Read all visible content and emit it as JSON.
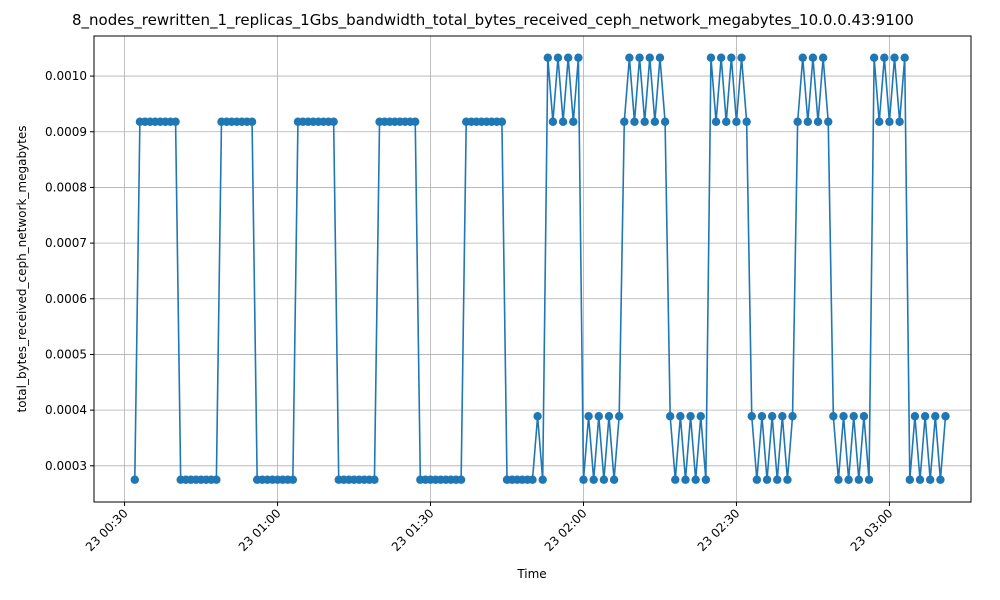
{
  "chart_data": {
    "type": "line",
    "title": "8_nodes_rewritten_1_replicas_1Gbs_bandwidth_total_bytes_received_ceph_network_megabytes_10.0.0.43:9100",
    "x_label": "Time",
    "y_label": "total_bytes_received_ceph_network_megabytes",
    "color": "#1f77b4",
    "grid": true,
    "marker": "circle",
    "x": [
      "23 00:32",
      "23 00:33",
      "23 00:34",
      "23 00:35",
      "23 00:36",
      "23 00:37",
      "23 00:38",
      "23 00:39",
      "23 00:40",
      "23 00:41",
      "23 00:42",
      "23 00:43",
      "23 00:44",
      "23 00:45",
      "23 00:46",
      "23 00:47",
      "23 00:48",
      "23 00:49",
      "23 00:50",
      "23 00:51",
      "23 00:52",
      "23 00:53",
      "23 00:54",
      "23 00:55",
      "23 00:56",
      "23 00:57",
      "23 00:58",
      "23 00:59",
      "23 01:00",
      "23 01:01",
      "23 01:02",
      "23 01:03",
      "23 01:04",
      "23 01:05",
      "23 01:06",
      "23 01:07",
      "23 01:08",
      "23 01:09",
      "23 01:10",
      "23 01:11",
      "23 01:12",
      "23 01:13",
      "23 01:14",
      "23 01:15",
      "23 01:16",
      "23 01:17",
      "23 01:18",
      "23 01:19",
      "23 01:20",
      "23 01:21",
      "23 01:22",
      "23 01:23",
      "23 01:24",
      "23 01:25",
      "23 01:26",
      "23 01:27",
      "23 01:28",
      "23 01:29",
      "23 01:30",
      "23 01:31",
      "23 01:32",
      "23 01:33",
      "23 01:34",
      "23 01:35",
      "23 01:36",
      "23 01:37",
      "23 01:38",
      "23 01:39",
      "23 01:40",
      "23 01:41",
      "23 01:42",
      "23 01:43",
      "23 01:44",
      "23 01:45",
      "23 01:46",
      "23 01:47",
      "23 01:48",
      "23 01:49",
      "23 01:50",
      "23 01:51",
      "23 01:52",
      "23 01:53",
      "23 01:54",
      "23 01:55",
      "23 01:56",
      "23 01:57",
      "23 01:58",
      "23 01:59",
      "23 02:00",
      "23 02:01",
      "23 02:02",
      "23 02:03",
      "23 02:04",
      "23 02:05",
      "23 02:06",
      "23 02:07",
      "23 02:08",
      "23 02:09",
      "23 02:10",
      "23 02:11",
      "23 02:12",
      "23 02:13",
      "23 02:14",
      "23 02:15",
      "23 02:16",
      "23 02:17",
      "23 02:18",
      "23 02:19",
      "23 02:20",
      "23 02:21",
      "23 02:22",
      "23 02:23",
      "23 02:24",
      "23 02:25",
      "23 02:26",
      "23 02:27",
      "23 02:28",
      "23 02:29",
      "23 02:30",
      "23 02:31",
      "23 02:32",
      "23 02:33",
      "23 02:34",
      "23 02:35",
      "23 02:36",
      "23 02:37",
      "23 02:38",
      "23 02:39",
      "23 02:40",
      "23 02:41",
      "23 02:42",
      "23 02:43",
      "23 02:44",
      "23 02:45",
      "23 02:46",
      "23 02:47",
      "23 02:48",
      "23 02:49",
      "23 02:50",
      "23 02:51",
      "23 02:52",
      "23 02:53",
      "23 02:54",
      "23 02:55",
      "23 02:56",
      "23 02:57",
      "23 02:58",
      "23 02:59",
      "23 03:00",
      "23 03:01",
      "23 03:02",
      "23 03:03",
      "23 03:04",
      "23 03:05",
      "23 03:06",
      "23 03:07",
      "23 03:08",
      "23 03:09",
      "23 03:10",
      "23 03:11"
    ],
    "values": [
      0.000275,
      0.000918,
      0.000918,
      0.000918,
      0.000918,
      0.000918,
      0.000918,
      0.000918,
      0.000918,
      0.000275,
      0.000275,
      0.000275,
      0.000275,
      0.000275,
      0.000275,
      0.000275,
      0.000275,
      0.000918,
      0.000918,
      0.000918,
      0.000918,
      0.000918,
      0.000918,
      0.000918,
      0.000275,
      0.000275,
      0.000275,
      0.000275,
      0.000275,
      0.000275,
      0.000275,
      0.000275,
      0.000918,
      0.000918,
      0.000918,
      0.000918,
      0.000918,
      0.000918,
      0.000918,
      0.000918,
      0.000275,
      0.000275,
      0.000275,
      0.000275,
      0.000275,
      0.000275,
      0.000275,
      0.000275,
      0.000918,
      0.000918,
      0.000918,
      0.000918,
      0.000918,
      0.000918,
      0.000918,
      0.000918,
      0.000275,
      0.000275,
      0.000275,
      0.000275,
      0.000275,
      0.000275,
      0.000275,
      0.000275,
      0.000275,
      0.000918,
      0.000918,
      0.000918,
      0.000918,
      0.000918,
      0.000918,
      0.000918,
      0.000918,
      0.000275,
      0.000275,
      0.000275,
      0.000275,
      0.000275,
      0.000275,
      0.000389,
      0.000275,
      0.001033,
      0.000918,
      0.001033,
      0.000918,
      0.001033,
      0.000918,
      0.001033,
      0.000275,
      0.000389,
      0.000275,
      0.000389,
      0.000275,
      0.000389,
      0.000275,
      0.000389,
      0.000918,
      0.001033,
      0.000918,
      0.001033,
      0.000918,
      0.001033,
      0.000918,
      0.001033,
      0.000918,
      0.000389,
      0.000275,
      0.000389,
      0.000275,
      0.000389,
      0.000275,
      0.000389,
      0.000275,
      0.001033,
      0.000918,
      0.001033,
      0.000918,
      0.001033,
      0.000918,
      0.001033,
      0.000918,
      0.000389,
      0.000275,
      0.000389,
      0.000275,
      0.000389,
      0.000275,
      0.000389,
      0.000275,
      0.000389,
      0.000918,
      0.001033,
      0.000918,
      0.001033,
      0.000918,
      0.001033,
      0.000918,
      0.000389,
      0.000275,
      0.000389,
      0.000275,
      0.000389,
      0.000275,
      0.000389,
      0.000275,
      0.001033,
      0.000918,
      0.001033,
      0.000918,
      0.001033,
      0.000918,
      0.001033,
      0.000275,
      0.000389,
      0.000275,
      0.000389,
      0.000275,
      0.000389,
      0.000275,
      0.000389
    ],
    "xlim": [
      "23 00:24",
      "23 03:16"
    ],
    "xticks": [
      "23 00:30",
      "23 01:00",
      "23 01:30",
      "23 02:00",
      "23 02:30",
      "23 03:00"
    ],
    "ylim": [
      0.000235,
      0.001072
    ],
    "yticks": [
      0.0003,
      0.0004,
      0.0005,
      0.0006,
      0.0007,
      0.0008,
      0.0009,
      {
        "value": 0.001,
        "label": "0.0010"
      }
    ]
  }
}
